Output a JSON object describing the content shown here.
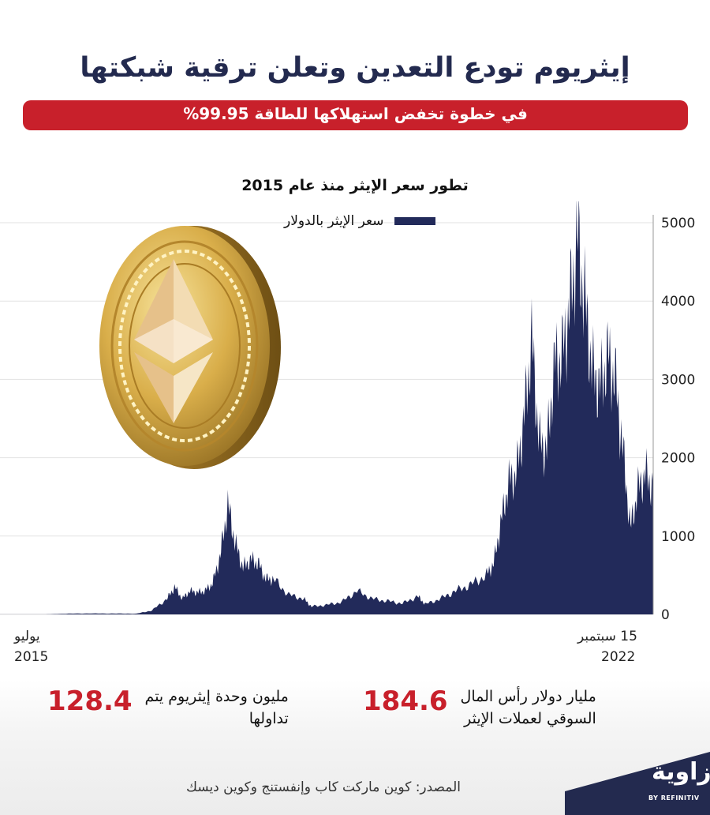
{
  "header": {
    "title": "إيثريوم تودع التعدين وتعلن ترقية شبكتها",
    "subtitle": "في خطوة تخفض استهلاكها للطاقة 99.95%"
  },
  "chart_data": {
    "type": "area",
    "title": "تطور سعر الإيثر منذ عام 2015",
    "legend": {
      "label": "سعر الإيثر بالدولار",
      "position": "top-right"
    },
    "series": [
      {
        "name": "سعر الإيثر بالدولار"
      }
    ],
    "x": [
      "2015-07",
      "2015-10",
      "2016-01",
      "2016-04",
      "2016-07",
      "2016-10",
      "2017-01",
      "2017-03",
      "2017-05",
      "2017-06",
      "2017-07",
      "2017-08",
      "2017-09",
      "2017-10",
      "2017-11",
      "2017-12",
      "2018-01",
      "2018-02",
      "2018-03",
      "2018-04",
      "2018-05",
      "2018-06",
      "2018-07",
      "2018-09",
      "2018-11",
      "2018-12",
      "2019-02",
      "2019-04",
      "2019-06",
      "2019-08",
      "2019-10",
      "2019-12",
      "2020-02",
      "2020-03",
      "2020-05",
      "2020-07",
      "2020-09",
      "2020-11",
      "2020-12",
      "2021-01",
      "2021-02",
      "2021-03",
      "2021-04",
      "2021-05",
      "2021-06",
      "2021-07",
      "2021-08",
      "2021-09",
      "2021-10",
      "2021-11",
      "2021-12",
      "2022-01",
      "2022-02",
      "2022-03",
      "2022-04",
      "2022-05",
      "2022-06",
      "2022-07",
      "2022-08",
      "2022-09"
    ],
    "values": [
      1,
      1,
      1,
      10,
      12,
      11,
      10,
      50,
      200,
      350,
      200,
      300,
      280,
      300,
      400,
      750,
      1400,
      900,
      600,
      700,
      650,
      450,
      450,
      250,
      200,
      100,
      120,
      160,
      300,
      200,
      170,
      140,
      230,
      130,
      200,
      300,
      380,
      500,
      650,
      1200,
      1700,
      1800,
      2500,
      3500,
      2200,
      2100,
      3200,
      3300,
      3900,
      4800,
      4000,
      3100,
      2900,
      3300,
      3000,
      2100,
      1100,
      1600,
      1800,
      1600
    ],
    "xlabels": {
      "start": [
        "يوليو",
        "2015"
      ],
      "end": [
        "15 سبتمبر",
        "2022"
      ]
    },
    "yticks": [
      0,
      1000,
      2000,
      3000,
      4000,
      5000
    ],
    "ylim": [
      0,
      5000
    ],
    "grid": true,
    "color": "#222a5a",
    "grid_color": "#e2e2e2"
  },
  "stats": [
    {
      "number": "184.6",
      "label": [
        "مليار دولار رأس المال",
        "السوقي لعملات الإيثر"
      ]
    },
    {
      "number": "128.4",
      "label": [
        "مليون وحدة إيثريوم يتم",
        "تداولها"
      ]
    }
  ],
  "footer": {
    "source": "المصدر: كوين ماركت كاب وإنفستنج وكوين ديسك",
    "logo": "زاوية",
    "logo_sub": "BY REFINITIV"
  },
  "colors": {
    "navy": "#232a4f",
    "red": "#c8202b"
  }
}
